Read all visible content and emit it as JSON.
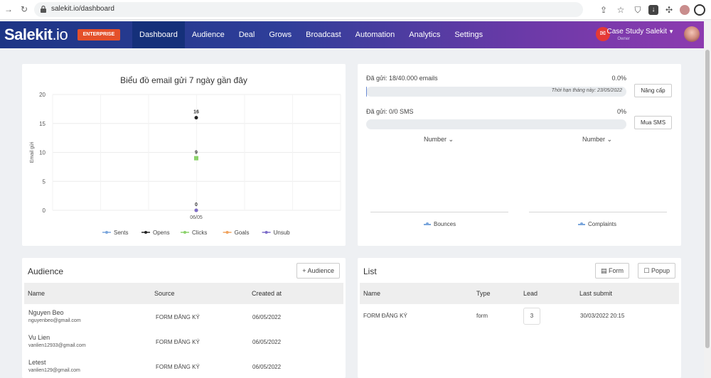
{
  "browser": {
    "url": "salekit.io/dashboard"
  },
  "app": {
    "logo_main": "Salekit",
    "logo_suffix": ".io",
    "plan_badge": "ENTERPRISE",
    "nav": [
      {
        "label": "Dashboard",
        "active": true
      },
      {
        "label": "Audience"
      },
      {
        "label": "Deal"
      },
      {
        "label": "Grows"
      },
      {
        "label": "Broadcast"
      },
      {
        "label": "Automation"
      },
      {
        "label": "Analytics"
      },
      {
        "label": "Settings"
      }
    ],
    "user": {
      "name": "Case Study Salekit",
      "role": "Owner"
    }
  },
  "email_chart": {
    "title": "Biểu đồ email gửi 7 ngày gần đây"
  },
  "chart_data": {
    "type": "scatter",
    "title": "Biểu đồ email gửi 7 ngày gần đây",
    "ylabel": "Email gửi",
    "xlabel": "",
    "x": [
      "06/05"
    ],
    "ylim": [
      0,
      20
    ],
    "yticks": [
      0,
      5,
      10,
      15,
      20
    ],
    "series": [
      {
        "name": "Sents",
        "values": [
          0
        ],
        "color": "#7aa6dc"
      },
      {
        "name": "Opens",
        "values": [
          16
        ],
        "color": "#222222"
      },
      {
        "name": "Clicks",
        "values": [
          9
        ],
        "color": "#8bd26a"
      },
      {
        "name": "Goals",
        "values": [
          0
        ],
        "color": "#f0a35e"
      },
      {
        "name": "Unsub",
        "values": [
          0
        ],
        "color": "#7c6cc9"
      }
    ],
    "data_labels": [
      {
        "series": "Opens",
        "text": "16"
      },
      {
        "series": "Clicks",
        "text": "9"
      },
      {
        "series": "Unsub",
        "text": "0"
      }
    ],
    "grid": true,
    "legend": "bottom"
  },
  "stats": {
    "email_label": "Đã gửi: 18/40.000 emails",
    "email_pct": "0.0%",
    "email_fill": 0.0005,
    "email_note": "Thời hạn tháng này: 23/05/2022",
    "upgrade_btn": "Nâng cấp",
    "sms_label": "Đã gửi: 0/0 SMS",
    "sms_pct": "0%",
    "sms_fill": 0,
    "buy_sms_btn": "Mua SMS",
    "dropdown_left": "Number",
    "dropdown_right": "Number",
    "legend_left": "Bounces",
    "legend_right": "Complaints"
  },
  "audience": {
    "title": "Audience",
    "add_btn": "+ Audience",
    "columns": [
      "Name",
      "Source",
      "Created at"
    ],
    "rows": [
      {
        "name": "Nguyen Beo",
        "email": "nguyenbeo@gmail.com",
        "source": "FORM ĐĂNG KÝ",
        "created": "06/05/2022"
      },
      {
        "name": "Vu Lien",
        "email": "vanlien12933@gmail.com",
        "source": "FORM ĐĂNG KÝ",
        "created": "06/05/2022"
      },
      {
        "name": "Letest",
        "email": "vanlien129@gmail.com",
        "source": "FORM ĐĂNG KÝ",
        "created": "06/05/2022"
      }
    ]
  },
  "list": {
    "title": "List",
    "form_btn": "Form",
    "popup_btn": "Popup",
    "columns": [
      "Name",
      "Type",
      "Lead",
      "Last submit"
    ],
    "rows": [
      {
        "name": "FORM ĐĂNG KÝ",
        "type": "form",
        "lead": "3",
        "last_submit": "30/03/2022 20:15"
      }
    ]
  }
}
